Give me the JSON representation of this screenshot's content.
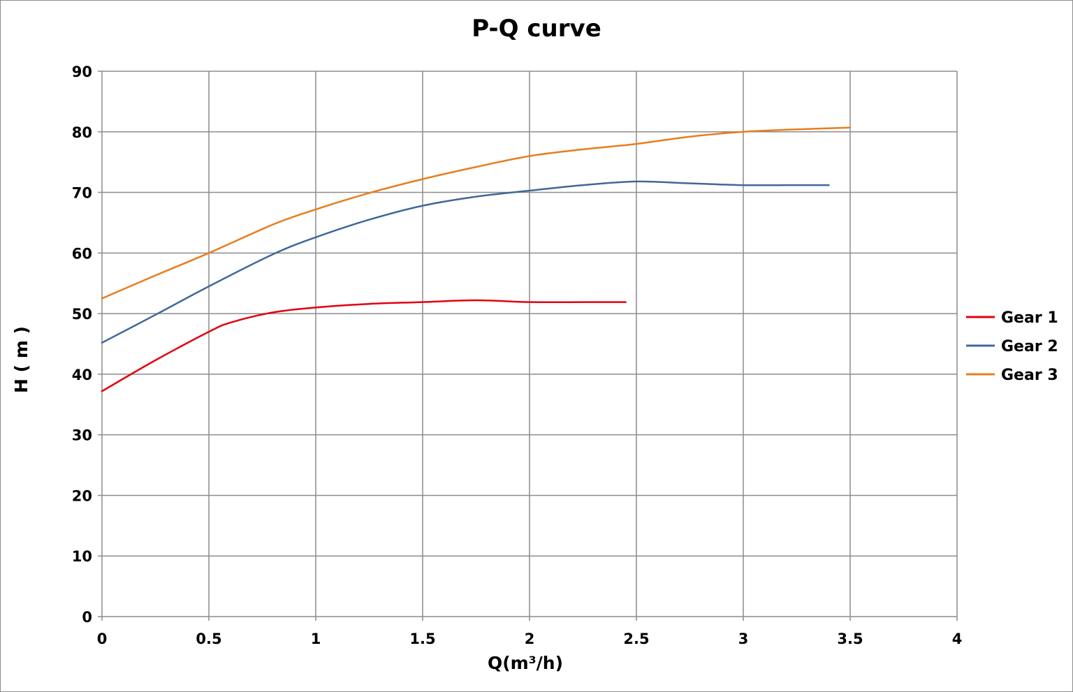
{
  "chart_data": {
    "type": "line",
    "title": "P-Q  curve",
    "xlabel": "Q(m³/h)",
    "ylabel": "H ( m )",
    "xlim": [
      0,
      4
    ],
    "ylim": [
      0,
      90
    ],
    "xticks": [
      "0",
      "0.5",
      "1",
      "1.5",
      "2",
      "2.5",
      "3",
      "3.5",
      "4"
    ],
    "yticks": [
      "0",
      "10",
      "20",
      "30",
      "40",
      "50",
      "60",
      "70",
      "80",
      "90"
    ],
    "grid": true,
    "legend_position": "right",
    "series": [
      {
        "name": "Gear 1",
        "color": "#e3000f",
        "x": [
          0,
          0.25,
          0.5,
          0.6,
          0.8,
          1.0,
          1.25,
          1.5,
          1.75,
          2.0,
          2.25,
          2.45
        ],
        "y": [
          37.2,
          42.3,
          47.0,
          48.5,
          50.2,
          51.0,
          51.6,
          51.9,
          52.2,
          51.9,
          51.9,
          51.9
        ]
      },
      {
        "name": "Gear 2",
        "color": "#40689a",
        "x": [
          0,
          0.25,
          0.5,
          0.8,
          1.0,
          1.25,
          1.5,
          1.75,
          2.0,
          2.25,
          2.5,
          2.75,
          3.0,
          3.2,
          3.4
        ],
        "y": [
          45.2,
          49.8,
          54.5,
          59.8,
          62.6,
          65.5,
          67.8,
          69.3,
          70.3,
          71.2,
          71.8,
          71.5,
          71.2,
          71.2,
          71.2
        ]
      },
      {
        "name": "Gear 3",
        "color": "#e87d1e",
        "x": [
          0,
          0.25,
          0.5,
          0.8,
          1.0,
          1.25,
          1.5,
          1.75,
          2.0,
          2.25,
          2.5,
          2.75,
          3.0,
          3.25,
          3.5
        ],
        "y": [
          52.5,
          56.3,
          60.0,
          64.7,
          67.2,
          69.9,
          72.2,
          74.2,
          76.0,
          77.1,
          78.0,
          79.2,
          80.0,
          80.4,
          80.7
        ]
      }
    ]
  }
}
